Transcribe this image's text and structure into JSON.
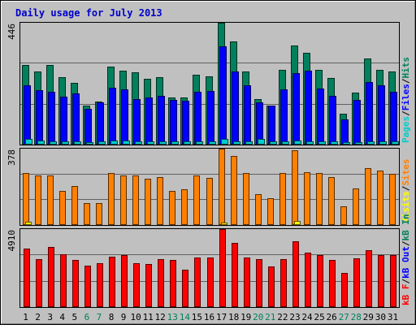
{
  "title": "Daily usage for July 2013",
  "colors": {
    "background": "#c0c0c0",
    "frame_light": "#ffffff",
    "frame_dark": "#808080",
    "plot_border": "#000000",
    "gridline": "#606060",
    "title": "#0000cc",
    "pages": "#00cccc",
    "files": "#0000ff",
    "hits": "#00805c",
    "visits": "#ffff00",
    "sites": "#ff8000",
    "kb_in": "#00805c",
    "kb_out": "#0000ff",
    "kb_f": "#ff0000",
    "weekday_label": "#000000",
    "weekend_label": "#00805c",
    "separator": "/"
  },
  "chart_data": [
    {
      "type": "bar",
      "panel": "hits",
      "ymax_label": "446",
      "ylim": [
        0,
        446
      ],
      "grid": true,
      "legend_position": "right, rotated",
      "categories": [
        "1",
        "2",
        "3",
        "4",
        "5",
        "6",
        "7",
        "8",
        "9",
        "10",
        "11",
        "12",
        "13",
        "14",
        "15",
        "16",
        "17",
        "18",
        "19",
        "20",
        "21",
        "22",
        "23",
        "24",
        "25",
        "26",
        "27",
        "28",
        "29",
        "30",
        "31"
      ],
      "series": [
        {
          "name": "Hits",
          "values": [
            292,
            268,
            292,
            247,
            227,
            144,
            159,
            286,
            271,
            264,
            242,
            246,
            171,
            171,
            255,
            250,
            446,
            377,
            268,
            166,
            144,
            274,
            363,
            335,
            273,
            245,
            114,
            190,
            316,
            275,
            268
          ]
        },
        {
          "name": "Files",
          "values": [
            216,
            199,
            193,
            175,
            187,
            132,
            155,
            209,
            202,
            167,
            171,
            179,
            164,
            160,
            193,
            195,
            361,
            267,
            216,
            154,
            142,
            202,
            262,
            271,
            206,
            178,
            91,
            163,
            228,
            217,
            192
          ]
        },
        {
          "name": "Pages",
          "values": [
            20,
            14,
            12,
            12,
            12,
            10,
            11,
            16,
            14,
            12,
            13,
            11,
            11,
            11,
            13,
            13,
            20,
            11,
            12,
            20,
            11,
            13,
            16,
            13,
            11,
            11,
            10,
            10,
            13,
            12,
            12
          ]
        }
      ]
    },
    {
      "type": "bar",
      "panel": "visits",
      "ymax_label": "378",
      "ylim": [
        0,
        378
      ],
      "grid": true,
      "legend_position": "right, rotated",
      "categories": [
        "1",
        "2",
        "3",
        "4",
        "5",
        "6",
        "7",
        "8",
        "9",
        "10",
        "11",
        "12",
        "13",
        "14",
        "15",
        "16",
        "17",
        "18",
        "19",
        "20",
        "21",
        "22",
        "23",
        "24",
        "25",
        "26",
        "27",
        "28",
        "29",
        "30",
        "31"
      ],
      "series": [
        {
          "name": "Sites",
          "values": [
            256,
            244,
            244,
            170,
            194,
            110,
            110,
            256,
            244,
            244,
            231,
            238,
            170,
            176,
            244,
            232,
            378,
            342,
            256,
            152,
            134,
            256,
            370,
            263,
            256,
            237,
            91,
            182,
            282,
            268,
            253
          ]
        },
        {
          "name": "Visits",
          "values": [
            18,
            6,
            6,
            6,
            6,
            6,
            6,
            6,
            6,
            6,
            6,
            6,
            6,
            6,
            6,
            6,
            12,
            6,
            6,
            6,
            6,
            6,
            20,
            6,
            6,
            6,
            6,
            6,
            6,
            6,
            6
          ]
        }
      ]
    },
    {
      "type": "bar",
      "panel": "kbytes",
      "ymax_label": "4910",
      "ylim": [
        0,
        4910
      ],
      "grid": true,
      "legend_position": "right, rotated",
      "categories": [
        "1",
        "2",
        "3",
        "4",
        "5",
        "6",
        "7",
        "8",
        "9",
        "10",
        "11",
        "12",
        "13",
        "14",
        "15",
        "16",
        "17",
        "18",
        "19",
        "20",
        "21",
        "22",
        "23",
        "24",
        "25",
        "26",
        "27",
        "28",
        "29",
        "30",
        "31"
      ],
      "series": [
        {
          "name": "kB F",
          "values": [
            3690,
            3030,
            3760,
            3330,
            2960,
            2610,
            2770,
            3160,
            3290,
            2770,
            2720,
            3000,
            2960,
            2340,
            3140,
            3140,
            4910,
            4020,
            3140,
            3040,
            2580,
            3000,
            4150,
            3430,
            3280,
            2980,
            2160,
            3070,
            3560,
            3260,
            3260
          ]
        }
      ]
    }
  ],
  "x_labels": [
    {
      "label": "1",
      "weekend": false
    },
    {
      "label": "2",
      "weekend": false
    },
    {
      "label": "3",
      "weekend": false
    },
    {
      "label": "4",
      "weekend": false
    },
    {
      "label": "5",
      "weekend": false
    },
    {
      "label": "6",
      "weekend": true
    },
    {
      "label": "7",
      "weekend": true
    },
    {
      "label": "8",
      "weekend": false
    },
    {
      "label": "9",
      "weekend": false
    },
    {
      "label": "10",
      "weekend": false
    },
    {
      "label": "11",
      "weekend": false
    },
    {
      "label": "12",
      "weekend": false
    },
    {
      "label": "13",
      "weekend": true
    },
    {
      "label": "14",
      "weekend": true
    },
    {
      "label": "15",
      "weekend": false
    },
    {
      "label": "16",
      "weekend": false
    },
    {
      "label": "17",
      "weekend": false
    },
    {
      "label": "18",
      "weekend": false
    },
    {
      "label": "19",
      "weekend": false
    },
    {
      "label": "20",
      "weekend": true
    },
    {
      "label": "21",
      "weekend": true
    },
    {
      "label": "22",
      "weekend": false
    },
    {
      "label": "23",
      "weekend": false
    },
    {
      "label": "24",
      "weekend": false
    },
    {
      "label": "25",
      "weekend": false
    },
    {
      "label": "26",
      "weekend": false
    },
    {
      "label": "27",
      "weekend": true
    },
    {
      "label": "28",
      "weekend": true
    },
    {
      "label": "29",
      "weekend": false
    },
    {
      "label": "30",
      "weekend": false
    },
    {
      "label": "31",
      "weekend": false
    }
  ],
  "legends": [
    {
      "panel": "hits",
      "items": [
        {
          "text": "Pages",
          "color": "#00cccc"
        },
        {
          "text": "Files",
          "color": "#0000ff"
        },
        {
          "text": "Hits",
          "color": "#00805c"
        }
      ]
    },
    {
      "panel": "visits",
      "items": [
        {
          "text": "Visits",
          "color": "#ffff00"
        },
        {
          "text": "Sites",
          "color": "#ff8000"
        }
      ]
    },
    {
      "panel": "kbytes",
      "items": [
        {
          "text": "kB F",
          "color": "#ff0000"
        },
        {
          "text": "kB Out",
          "color": "#0000ff"
        },
        {
          "text": "kB In",
          "color": "#00805c"
        }
      ]
    }
  ]
}
